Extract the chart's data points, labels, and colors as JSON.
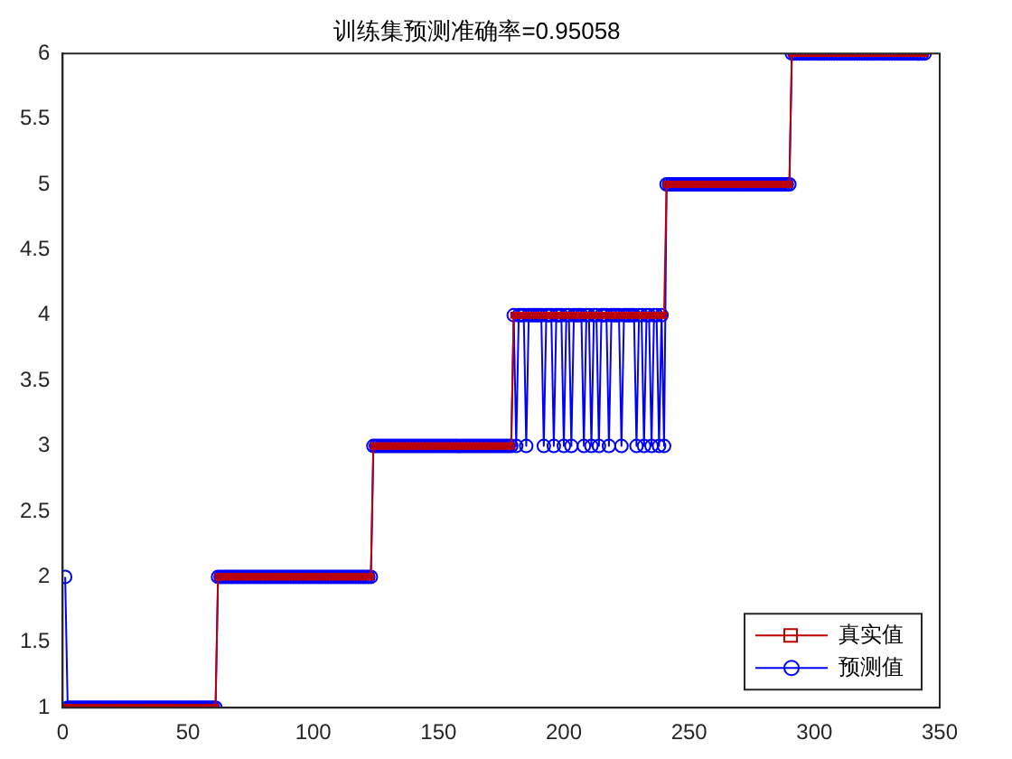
{
  "chart_data": {
    "type": "line",
    "title": "训练集预测准确率=0.95058",
    "x": [
      1,
      2,
      3,
      4,
      5,
      6,
      7,
      8,
      9,
      10,
      11,
      12,
      13,
      14,
      15,
      16,
      17,
      18,
      19,
      20,
      21,
      22,
      23,
      24,
      25,
      26,
      27,
      28,
      29,
      30,
      31,
      32,
      33,
      34,
      35,
      36,
      37,
      38,
      39,
      40,
      41,
      42,
      43,
      44,
      45,
      46,
      47,
      48,
      49,
      50,
      51,
      52,
      53,
      54,
      55,
      56,
      57,
      58,
      59,
      60,
      61,
      62,
      63,
      64,
      65,
      66,
      67,
      68,
      69,
      70,
      71,
      72,
      73,
      74,
      75,
      76,
      77,
      78,
      79,
      80,
      81,
      82,
      83,
      84,
      85,
      86,
      87,
      88,
      89,
      90,
      91,
      92,
      93,
      94,
      95,
      96,
      97,
      98,
      99,
      100,
      101,
      102,
      103,
      104,
      105,
      106,
      107,
      108,
      109,
      110,
      111,
      112,
      113,
      114,
      115,
      116,
      117,
      118,
      119,
      120,
      121,
      122,
      123,
      124,
      125,
      126,
      127,
      128,
      129,
      130,
      131,
      132,
      133,
      134,
      135,
      136,
      137,
      138,
      139,
      140,
      141,
      142,
      143,
      144,
      145,
      146,
      147,
      148,
      149,
      150,
      151,
      152,
      153,
      154,
      155,
      156,
      157,
      158,
      159,
      160,
      161,
      162,
      163,
      164,
      165,
      166,
      167,
      168,
      169,
      170,
      171,
      172,
      173,
      174,
      175,
      176,
      177,
      178,
      179,
      180,
      181,
      182,
      183,
      184,
      185,
      186,
      187,
      188,
      189,
      190,
      191,
      192,
      193,
      194,
      195,
      196,
      197,
      198,
      199,
      200,
      201,
      202,
      203,
      204,
      205,
      206,
      207,
      208,
      209,
      210,
      211,
      212,
      213,
      214,
      215,
      216,
      217,
      218,
      219,
      220,
      221,
      222,
      223,
      224,
      225,
      226,
      227,
      228,
      229,
      230,
      231,
      232,
      233,
      234,
      235,
      236,
      237,
      238,
      239,
      240,
      241,
      242,
      243,
      244,
      245,
      246,
      247,
      248,
      249,
      250,
      251,
      252,
      253,
      254,
      255,
      256,
      257,
      258,
      259,
      260,
      261,
      262,
      263,
      264,
      265,
      266,
      267,
      268,
      269,
      270,
      271,
      272,
      273,
      274,
      275,
      276,
      277,
      278,
      279,
      280,
      281,
      282,
      283,
      284,
      285,
      286,
      287,
      288,
      289,
      290,
      291,
      292,
      293,
      294,
      295,
      296,
      297,
      298,
      299,
      300,
      301,
      302,
      303,
      304,
      305,
      306,
      307,
      308,
      309,
      310,
      311,
      312,
      313,
      314,
      315,
      316,
      317,
      318,
      319,
      320,
      321,
      322,
      323,
      324,
      325,
      326,
      327,
      328,
      329,
      330,
      331,
      332,
      333,
      334,
      335,
      336,
      337,
      338,
      339,
      340,
      341,
      342,
      343,
      344
    ],
    "series": [
      {
        "name": "真实值",
        "color": "#c00000",
        "marker": "square",
        "values": [
          1,
          1,
          1,
          1,
          1,
          1,
          1,
          1,
          1,
          1,
          1,
          1,
          1,
          1,
          1,
          1,
          1,
          1,
          1,
          1,
          1,
          1,
          1,
          1,
          1,
          1,
          1,
          1,
          1,
          1,
          1,
          1,
          1,
          1,
          1,
          1,
          1,
          1,
          1,
          1,
          1,
          1,
          1,
          1,
          1,
          1,
          1,
          1,
          1,
          1,
          1,
          1,
          1,
          1,
          1,
          1,
          1,
          1,
          1,
          1,
          1,
          2,
          2,
          2,
          2,
          2,
          2,
          2,
          2,
          2,
          2,
          2,
          2,
          2,
          2,
          2,
          2,
          2,
          2,
          2,
          2,
          2,
          2,
          2,
          2,
          2,
          2,
          2,
          2,
          2,
          2,
          2,
          2,
          2,
          2,
          2,
          2,
          2,
          2,
          2,
          2,
          2,
          2,
          2,
          2,
          2,
          2,
          2,
          2,
          2,
          2,
          2,
          2,
          2,
          2,
          2,
          2,
          2,
          2,
          2,
          2,
          2,
          2,
          3,
          3,
          3,
          3,
          3,
          3,
          3,
          3,
          3,
          3,
          3,
          3,
          3,
          3,
          3,
          3,
          3,
          3,
          3,
          3,
          3,
          3,
          3,
          3,
          3,
          3,
          3,
          3,
          3,
          3,
          3,
          3,
          3,
          3,
          3,
          3,
          3,
          3,
          3,
          3,
          3,
          3,
          3,
          3,
          3,
          3,
          3,
          3,
          3,
          3,
          3,
          3,
          3,
          3,
          3,
          3,
          4,
          4,
          4,
          4,
          4,
          4,
          4,
          4,
          4,
          4,
          4,
          4,
          4,
          4,
          4,
          4,
          4,
          4,
          4,
          4,
          4,
          4,
          4,
          4,
          4,
          4,
          4,
          4,
          4,
          4,
          4,
          4,
          4,
          4,
          4,
          4,
          4,
          4,
          4,
          4,
          4,
          4,
          4,
          4,
          4,
          4,
          4,
          4,
          4,
          4,
          4,
          4,
          4,
          4,
          4,
          4,
          4,
          4,
          4,
          4,
          4,
          5,
          5,
          5,
          5,
          5,
          5,
          5,
          5,
          5,
          5,
          5,
          5,
          5,
          5,
          5,
          5,
          5,
          5,
          5,
          5,
          5,
          5,
          5,
          5,
          5,
          5,
          5,
          5,
          5,
          5,
          5,
          5,
          5,
          5,
          5,
          5,
          5,
          5,
          5,
          5,
          5,
          5,
          5,
          5,
          5,
          5,
          5,
          5,
          5,
          5,
          6,
          6,
          6,
          6,
          6,
          6,
          6,
          6,
          6,
          6,
          6,
          6,
          6,
          6,
          6,
          6,
          6,
          6,
          6,
          6,
          6,
          6,
          6,
          6,
          6,
          6,
          6,
          6,
          6,
          6,
          6,
          6,
          6,
          6,
          6,
          6,
          6,
          6,
          6,
          6,
          6,
          6,
          6,
          6,
          6,
          6,
          6,
          6,
          6,
          6,
          6,
          6,
          6,
          6
        ]
      },
      {
        "name": "预测值",
        "color": "#0000ff",
        "marker": "circle",
        "values": [
          2,
          1,
          1,
          1,
          1,
          1,
          1,
          1,
          1,
          1,
          1,
          1,
          1,
          1,
          1,
          1,
          1,
          1,
          1,
          1,
          1,
          1,
          1,
          1,
          1,
          1,
          1,
          1,
          1,
          1,
          1,
          1,
          1,
          1,
          1,
          1,
          1,
          1,
          1,
          1,
          1,
          1,
          1,
          1,
          1,
          1,
          1,
          1,
          1,
          1,
          1,
          1,
          1,
          1,
          1,
          1,
          1,
          1,
          1,
          1,
          1,
          2,
          2,
          2,
          2,
          2,
          2,
          2,
          2,
          2,
          2,
          2,
          2,
          2,
          2,
          2,
          2,
          2,
          2,
          2,
          2,
          2,
          2,
          2,
          2,
          2,
          2,
          2,
          2,
          2,
          2,
          2,
          2,
          2,
          2,
          2,
          2,
          2,
          2,
          2,
          2,
          2,
          2,
          2,
          2,
          2,
          2,
          2,
          2,
          2,
          2,
          2,
          2,
          2,
          2,
          2,
          2,
          2,
          2,
          2,
          2,
          2,
          2,
          3,
          3,
          3,
          3,
          3,
          3,
          3,
          3,
          3,
          3,
          3,
          3,
          3,
          3,
          3,
          3,
          3,
          3,
          3,
          3,
          3,
          3,
          3,
          3,
          3,
          3,
          3,
          3,
          3,
          3,
          3,
          3,
          3,
          3,
          3,
          3,
          3,
          3,
          3,
          3,
          3,
          3,
          3,
          3,
          3,
          3,
          3,
          3,
          3,
          3,
          3,
          3,
          3,
          3,
          3,
          3,
          4,
          3,
          4,
          4,
          4,
          3,
          4,
          4,
          4,
          4,
          4,
          4,
          3,
          4,
          4,
          4,
          3,
          4,
          4,
          4,
          3,
          4,
          4,
          3,
          4,
          4,
          4,
          4,
          3,
          4,
          4,
          3,
          4,
          4,
          3,
          4,
          4,
          4,
          3,
          4,
          4,
          4,
          4,
          3,
          4,
          4,
          4,
          4,
          4,
          3,
          4,
          4,
          3,
          4,
          4,
          3,
          4,
          4,
          3,
          4,
          3,
          5,
          5,
          5,
          5,
          5,
          5,
          5,
          5,
          5,
          5,
          5,
          5,
          5,
          5,
          5,
          5,
          5,
          5,
          5,
          5,
          5,
          5,
          5,
          5,
          5,
          5,
          5,
          5,
          5,
          5,
          5,
          5,
          5,
          5,
          5,
          5,
          5,
          5,
          5,
          5,
          5,
          5,
          5,
          5,
          5,
          5,
          5,
          5,
          5,
          5,
          6,
          6,
          6,
          6,
          6,
          6,
          6,
          6,
          6,
          6,
          6,
          6,
          6,
          6,
          6,
          6,
          6,
          6,
          6,
          6,
          6,
          6,
          6,
          6,
          6,
          6,
          6,
          6,
          6,
          6,
          6,
          6,
          6,
          6,
          6,
          6,
          6,
          6,
          6,
          6,
          6,
          6,
          6,
          6,
          6,
          6,
          6,
          6,
          6,
          6,
          6,
          6,
          6,
          6
        ]
      }
    ],
    "xlim": [
      0,
      350
    ],
    "xticks": [
      0,
      50,
      100,
      150,
      200,
      250,
      300,
      350
    ],
    "ylim": [
      1,
      6
    ],
    "yticks": [
      1,
      1.5,
      2,
      2.5,
      3,
      3.5,
      4,
      4.5,
      5,
      5.5,
      6
    ],
    "grid": false,
    "legend": "bottom right",
    "line_style": "solid"
  }
}
